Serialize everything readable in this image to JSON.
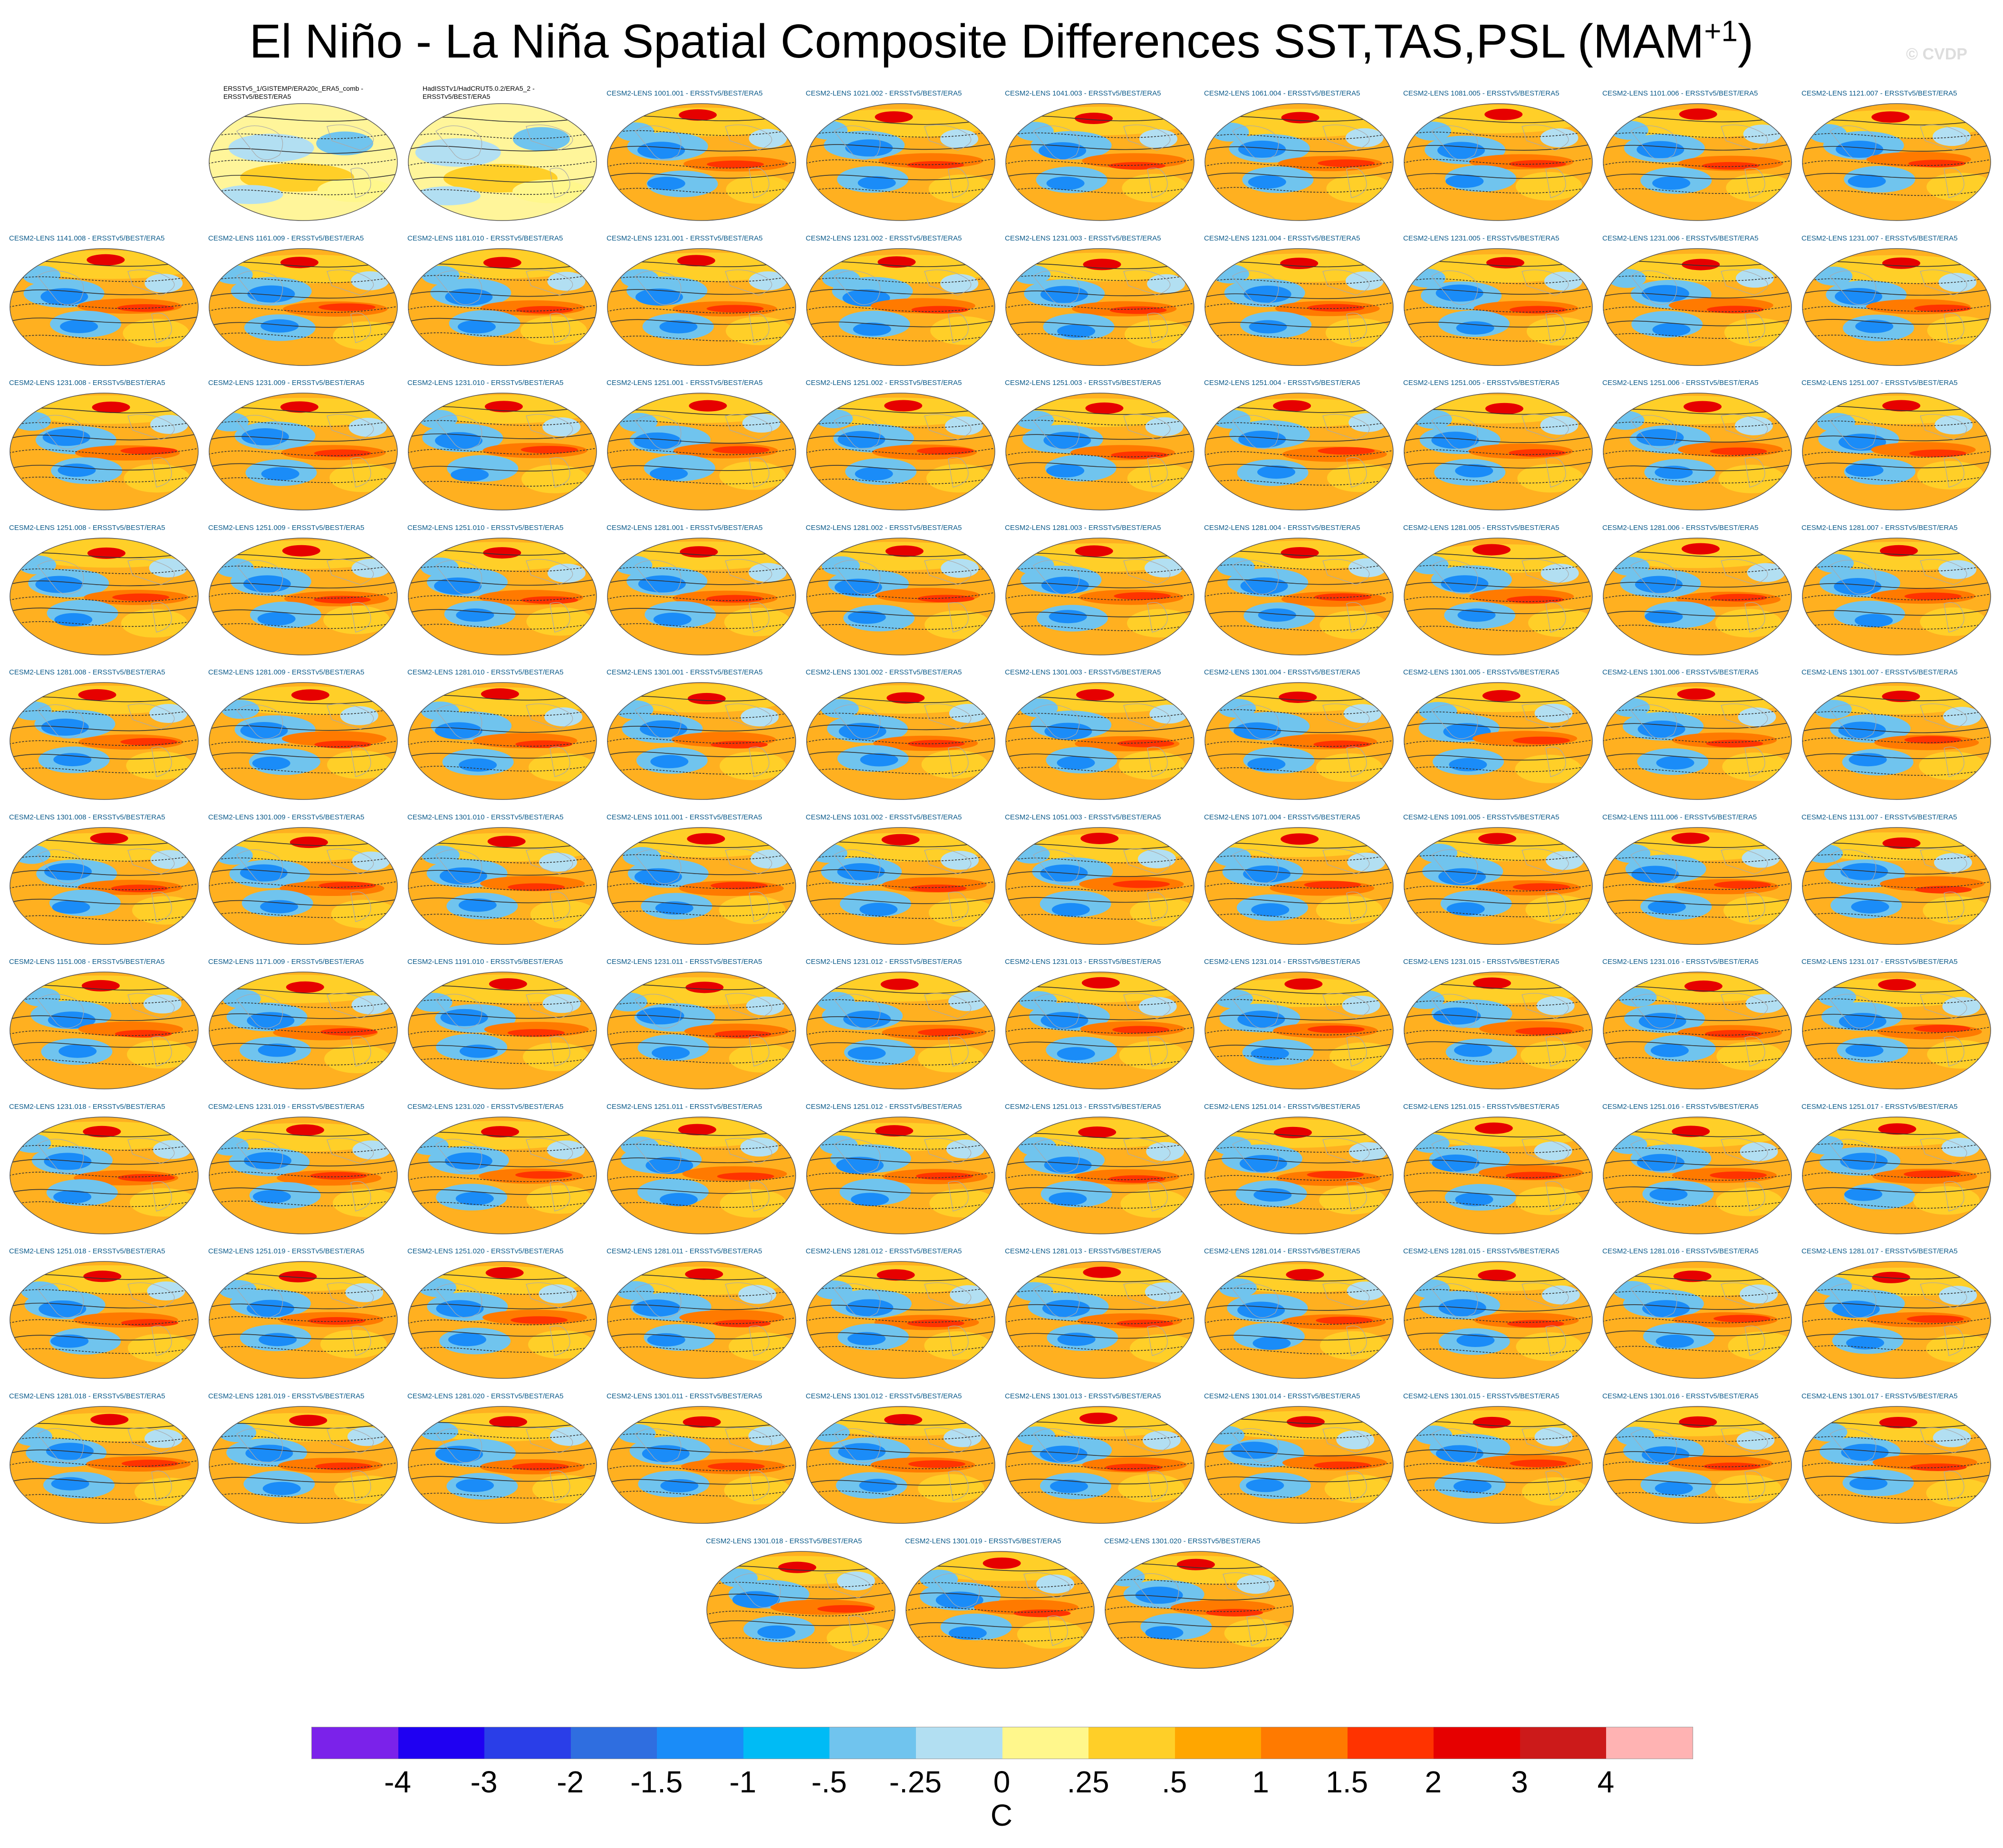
{
  "title": {
    "main": "El Niño - La Niña Spatial Composite Differences SST,TAS,PSL (MAM",
    "sup": "+1",
    "close": ")"
  },
  "watermark": "© CVDP",
  "panels": [
    {
      "label": "ERSSTv5_1/GISTEMP/ERA20c_ERA5_comb -\nERSSTv5/BEST/ERA5",
      "obs": true
    },
    {
      "label": "HadISSTv1/HadCRUT5.0.2/ERA5_2 -\nERSSTv5/BEST/ERA5",
      "obs": true
    },
    {
      "label": "CESM2-LENS 1001.001 - ERSSTv5/BEST/ERA5"
    },
    {
      "label": "CESM2-LENS 1021.002 - ERSSTv5/BEST/ERA5"
    },
    {
      "label": "CESM2-LENS 1041.003 - ERSSTv5/BEST/ERA5"
    },
    {
      "label": "CESM2-LENS 1061.004 - ERSSTv5/BEST/ERA5"
    },
    {
      "label": "CESM2-LENS 1081.005 - ERSSTv5/BEST/ERA5"
    },
    {
      "label": "CESM2-LENS 1101.006 - ERSSTv5/BEST/ERA5"
    },
    {
      "label": "CESM2-LENS 1121.007 - ERSSTv5/BEST/ERA5"
    },
    {
      "label": "CESM2-LENS 1141.008 - ERSSTv5/BEST/ERA5"
    },
    {
      "label": "CESM2-LENS 1161.009 - ERSSTv5/BEST/ERA5"
    },
    {
      "label": "CESM2-LENS 1181.010 - ERSSTv5/BEST/ERA5"
    },
    {
      "label": "CESM2-LENS 1231.001 - ERSSTv5/BEST/ERA5"
    },
    {
      "label": "CESM2-LENS 1231.002 - ERSSTv5/BEST/ERA5"
    },
    {
      "label": "CESM2-LENS 1231.003 - ERSSTv5/BEST/ERA5"
    },
    {
      "label": "CESM2-LENS 1231.004 - ERSSTv5/BEST/ERA5"
    },
    {
      "label": "CESM2-LENS 1231.005 - ERSSTv5/BEST/ERA5"
    },
    {
      "label": "CESM2-LENS 1231.006 - ERSSTv5/BEST/ERA5"
    },
    {
      "label": "CESM2-LENS 1231.007 - ERSSTv5/BEST/ERA5"
    },
    {
      "label": "CESM2-LENS 1231.008 - ERSSTv5/BEST/ERA5"
    },
    {
      "label": "CESM2-LENS 1231.009 - ERSSTv5/BEST/ERA5"
    },
    {
      "label": "CESM2-LENS 1231.010 - ERSSTv5/BEST/ERA5"
    },
    {
      "label": "CESM2-LENS 1251.001 - ERSSTv5/BEST/ERA5"
    },
    {
      "label": "CESM2-LENS 1251.002 - ERSSTv5/BEST/ERA5"
    },
    {
      "label": "CESM2-LENS 1251.003 - ERSSTv5/BEST/ERA5"
    },
    {
      "label": "CESM2-LENS 1251.004 - ERSSTv5/BEST/ERA5"
    },
    {
      "label": "CESM2-LENS 1251.005 - ERSSTv5/BEST/ERA5"
    },
    {
      "label": "CESM2-LENS 1251.006 - ERSSTv5/BEST/ERA5"
    },
    {
      "label": "CESM2-LENS 1251.007 - ERSSTv5/BEST/ERA5"
    },
    {
      "label": "CESM2-LENS 1251.008 - ERSSTv5/BEST/ERA5"
    },
    {
      "label": "CESM2-LENS 1251.009 - ERSSTv5/BEST/ERA5"
    },
    {
      "label": "CESM2-LENS 1251.010 - ERSSTv5/BEST/ERA5"
    },
    {
      "label": "CESM2-LENS 1281.001 - ERSSTv5/BEST/ERA5"
    },
    {
      "label": "CESM2-LENS 1281.002 - ERSSTv5/BEST/ERA5"
    },
    {
      "label": "CESM2-LENS 1281.003 - ERSSTv5/BEST/ERA5"
    },
    {
      "label": "CESM2-LENS 1281.004 - ERSSTv5/BEST/ERA5"
    },
    {
      "label": "CESM2-LENS 1281.005 - ERSSTv5/BEST/ERA5"
    },
    {
      "label": "CESM2-LENS 1281.006 - ERSSTv5/BEST/ERA5"
    },
    {
      "label": "CESM2-LENS 1281.007 - ERSSTv5/BEST/ERA5"
    },
    {
      "label": "CESM2-LENS 1281.008 - ERSSTv5/BEST/ERA5"
    },
    {
      "label": "CESM2-LENS 1281.009 - ERSSTv5/BEST/ERA5"
    },
    {
      "label": "CESM2-LENS 1281.010 - ERSSTv5/BEST/ERA5"
    },
    {
      "label": "CESM2-LENS 1301.001 - ERSSTv5/BEST/ERA5"
    },
    {
      "label": "CESM2-LENS 1301.002 - ERSSTv5/BEST/ERA5"
    },
    {
      "label": "CESM2-LENS 1301.003 - ERSSTv5/BEST/ERA5"
    },
    {
      "label": "CESM2-LENS 1301.004 - ERSSTv5/BEST/ERA5"
    },
    {
      "label": "CESM2-LENS 1301.005 - ERSSTv5/BEST/ERA5"
    },
    {
      "label": "CESM2-LENS 1301.006 - ERSSTv5/BEST/ERA5"
    },
    {
      "label": "CESM2-LENS 1301.007 - ERSSTv5/BEST/ERA5"
    },
    {
      "label": "CESM2-LENS 1301.008 - ERSSTv5/BEST/ERA5"
    },
    {
      "label": "CESM2-LENS 1301.009 - ERSSTv5/BEST/ERA5"
    },
    {
      "label": "CESM2-LENS 1301.010 - ERSSTv5/BEST/ERA5"
    },
    {
      "label": "CESM2-LENS 1011.001 - ERSSTv5/BEST/ERA5"
    },
    {
      "label": "CESM2-LENS 1031.002 - ERSSTv5/BEST/ERA5"
    },
    {
      "label": "CESM2-LENS 1051.003 - ERSSTv5/BEST/ERA5"
    },
    {
      "label": "CESM2-LENS 1071.004 - ERSSTv5/BEST/ERA5"
    },
    {
      "label": "CESM2-LENS 1091.005 - ERSSTv5/BEST/ERA5"
    },
    {
      "label": "CESM2-LENS 1111.006 - ERSSTv5/BEST/ERA5"
    },
    {
      "label": "CESM2-LENS 1131.007 - ERSSTv5/BEST/ERA5"
    },
    {
      "label": "CESM2-LENS 1151.008 - ERSSTv5/BEST/ERA5"
    },
    {
      "label": "CESM2-LENS 1171.009 - ERSSTv5/BEST/ERA5"
    },
    {
      "label": "CESM2-LENS 1191.010 - ERSSTv5/BEST/ERA5"
    },
    {
      "label": "CESM2-LENS 1231.011 - ERSSTv5/BEST/ERA5"
    },
    {
      "label": "CESM2-LENS 1231.012 - ERSSTv5/BEST/ERA5"
    },
    {
      "label": "CESM2-LENS 1231.013 - ERSSTv5/BEST/ERA5"
    },
    {
      "label": "CESM2-LENS 1231.014 - ERSSTv5/BEST/ERA5"
    },
    {
      "label": "CESM2-LENS 1231.015 - ERSSTv5/BEST/ERA5"
    },
    {
      "label": "CESM2-LENS 1231.016 - ERSSTv5/BEST/ERA5"
    },
    {
      "label": "CESM2-LENS 1231.017 - ERSSTv5/BEST/ERA5"
    },
    {
      "label": "CESM2-LENS 1231.018 - ERSSTv5/BEST/ERA5"
    },
    {
      "label": "CESM2-LENS 1231.019 - ERSSTv5/BEST/ERA5"
    },
    {
      "label": "CESM2-LENS 1231.020 - ERSSTv5/BEST/ERA5"
    },
    {
      "label": "CESM2-LENS 1251.011 - ERSSTv5/BEST/ERA5"
    },
    {
      "label": "CESM2-LENS 1251.012 - ERSSTv5/BEST/ERA5"
    },
    {
      "label": "CESM2-LENS 1251.013 - ERSSTv5/BEST/ERA5"
    },
    {
      "label": "CESM2-LENS 1251.014 - ERSSTv5/BEST/ERA5"
    },
    {
      "label": "CESM2-LENS 1251.015 - ERSSTv5/BEST/ERA5"
    },
    {
      "label": "CESM2-LENS 1251.016 - ERSSTv5/BEST/ERA5"
    },
    {
      "label": "CESM2-LENS 1251.017 - ERSSTv5/BEST/ERA5"
    },
    {
      "label": "CESM2-LENS 1251.018 - ERSSTv5/BEST/ERA5"
    },
    {
      "label": "CESM2-LENS 1251.019 - ERSSTv5/BEST/ERA5"
    },
    {
      "label": "CESM2-LENS 1251.020 - ERSSTv5/BEST/ERA5"
    },
    {
      "label": "CESM2-LENS 1281.011 - ERSSTv5/BEST/ERA5"
    },
    {
      "label": "CESM2-LENS 1281.012 - ERSSTv5/BEST/ERA5"
    },
    {
      "label": "CESM2-LENS 1281.013 - ERSSTv5/BEST/ERA5"
    },
    {
      "label": "CESM2-LENS 1281.014 - ERSSTv5/BEST/ERA5"
    },
    {
      "label": "CESM2-LENS 1281.015 - ERSSTv5/BEST/ERA5"
    },
    {
      "label": "CESM2-LENS 1281.016 - ERSSTv5/BEST/ERA5"
    },
    {
      "label": "CESM2-LENS 1281.017 - ERSSTv5/BEST/ERA5"
    },
    {
      "label": "CESM2-LENS 1281.018 - ERSSTv5/BEST/ERA5"
    },
    {
      "label": "CESM2-LENS 1281.019 - ERSSTv5/BEST/ERA5"
    },
    {
      "label": "CESM2-LENS 1281.020 - ERSSTv5/BEST/ERA5"
    },
    {
      "label": "CESM2-LENS 1301.011 - ERSSTv5/BEST/ERA5"
    },
    {
      "label": "CESM2-LENS 1301.012 - ERSSTv5/BEST/ERA5"
    },
    {
      "label": "CESM2-LENS 1301.013 - ERSSTv5/BEST/ERA5"
    },
    {
      "label": "CESM2-LENS 1301.014 - ERSSTv5/BEST/ERA5"
    },
    {
      "label": "CESM2-LENS 1301.015 - ERSSTv5/BEST/ERA5"
    },
    {
      "label": "CESM2-LENS 1301.016 - ERSSTv5/BEST/ERA5"
    },
    {
      "label": "CESM2-LENS 1301.017 - ERSSTv5/BEST/ERA5"
    },
    {
      "label": "CESM2-LENS 1301.018 - ERSSTv5/BEST/ERA5"
    },
    {
      "label": "CESM2-LENS 1301.019 - ERSSTv5/BEST/ERA5"
    },
    {
      "label": "CESM2-LENS 1301.020 - ERSSTv5/BEST/ERA5"
    }
  ],
  "colorbar": {
    "colors": [
      "#7b22ea",
      "#1f00f2",
      "#2a3ee8",
      "#2f6ee0",
      "#1a8cf8",
      "#00bbf5",
      "#70c4ee",
      "#b2dff2",
      "#fff78c",
      "#ffcf28",
      "#ffa600",
      "#ff7a00",
      "#ff3300",
      "#e60000",
      "#cc1a1a",
      "#ffb3b3"
    ],
    "labels": [
      "-4",
      "-3",
      "-2",
      "-1.5",
      "-1",
      "-.5",
      "-.25",
      "0",
      ".25",
      ".5",
      "1",
      "1.5",
      "2",
      "3",
      "4"
    ],
    "units": "C"
  }
}
